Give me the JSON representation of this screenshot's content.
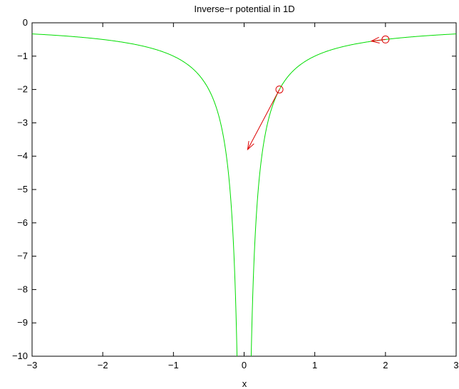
{
  "chart_data": {
    "type": "line",
    "title": "Inverse−r potential in 1D",
    "xlabel": "x",
    "ylabel": "",
    "xlim": [
      -3,
      3
    ],
    "ylim": [
      -10,
      0
    ],
    "xticks": [
      -3,
      -2,
      -1,
      0,
      1,
      2,
      3
    ],
    "yticks": [
      0,
      -1,
      -2,
      -3,
      -4,
      -5,
      -6,
      -7,
      -8,
      -9,
      -10
    ],
    "grid": false,
    "series": [
      {
        "function": "-1/|x|",
        "color": "#00dd00",
        "x": [
          -3,
          -2.5,
          -2,
          -1.5,
          -1,
          -0.75,
          -0.5,
          -0.4,
          -0.3,
          -0.25,
          -0.2,
          -0.15,
          -0.12,
          -0.1,
          0.1,
          0.12,
          0.15,
          0.2,
          0.25,
          0.3,
          0.4,
          0.5,
          0.75,
          1,
          1.5,
          2,
          2.5,
          3
        ],
        "y": [
          -0.333,
          -0.4,
          -0.5,
          -0.667,
          -1,
          -1.333,
          -2,
          -2.5,
          -3.333,
          -4,
          -5,
          -6.667,
          -8.333,
          -10,
          -10,
          -8.333,
          -6.667,
          -5,
          -4,
          -3.333,
          -2.5,
          -2,
          -1.333,
          -1,
          -0.667,
          -0.5,
          -0.4,
          -0.333
        ]
      }
    ],
    "markers": [
      {
        "x": 0.5,
        "y": -2,
        "color": "#dd0000"
      },
      {
        "x": 2,
        "y": -0.5,
        "color": "#dd0000"
      }
    ],
    "arrows": [
      {
        "x": 0.5,
        "y": -2,
        "dx": -0.45,
        "dy": -1.8,
        "color": "#dd0000"
      },
      {
        "x": 2,
        "y": -0.5,
        "dx": -0.2,
        "dy": -0.05,
        "color": "#dd0000"
      }
    ]
  }
}
